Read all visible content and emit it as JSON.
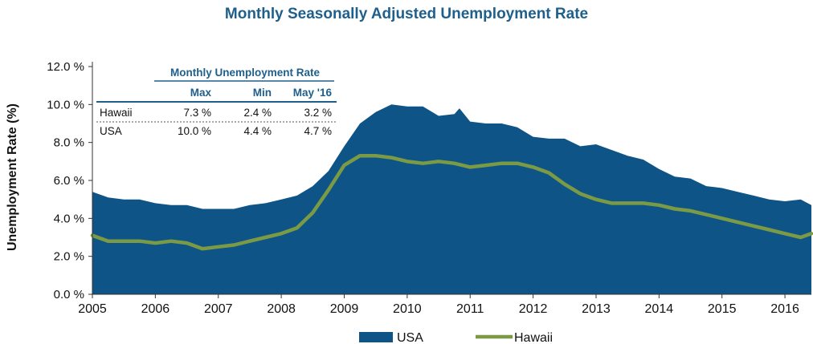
{
  "chart_data": {
    "type": "area",
    "title": "Monthly Seasonally Adjusted Unemployment Rate",
    "xlabel": "",
    "ylabel": "Unemployment Rate (%)",
    "x_ticks": [
      "2005",
      "2006",
      "2007",
      "2008",
      "2009",
      "2010",
      "2011",
      "2012",
      "2013",
      "2014",
      "2015",
      "2016"
    ],
    "y_ticks": [
      "0.0 %",
      "2.0 %",
      "4.0 %",
      "6.0 %",
      "8.0 %",
      "10.0 %",
      "12.0 %"
    ],
    "ylim": [
      0,
      12
    ],
    "xlim": [
      2005.0,
      2016.42
    ],
    "grid": false,
    "legend_position": "bottom",
    "series": [
      {
        "name": "USA",
        "style": "filled-area",
        "color": "#0e5486",
        "points": [
          [
            2005.0,
            5.4
          ],
          [
            2005.25,
            5.1
          ],
          [
            2005.5,
            5.0
          ],
          [
            2005.75,
            5.0
          ],
          [
            2006.0,
            4.8
          ],
          [
            2006.25,
            4.7
          ],
          [
            2006.5,
            4.7
          ],
          [
            2006.75,
            4.5
          ],
          [
            2007.0,
            4.5
          ],
          [
            2007.25,
            4.5
          ],
          [
            2007.5,
            4.7
          ],
          [
            2007.75,
            4.8
          ],
          [
            2008.0,
            5.0
          ],
          [
            2008.25,
            5.2
          ],
          [
            2008.5,
            5.7
          ],
          [
            2008.75,
            6.5
          ],
          [
            2009.0,
            7.8
          ],
          [
            2009.25,
            9.0
          ],
          [
            2009.5,
            9.6
          ],
          [
            2009.75,
            10.0
          ],
          [
            2010.0,
            9.9
          ],
          [
            2010.25,
            9.9
          ],
          [
            2010.5,
            9.4
          ],
          [
            2010.75,
            9.5
          ],
          [
            2010.83,
            9.8
          ],
          [
            2011.0,
            9.1
          ],
          [
            2011.25,
            9.0
          ],
          [
            2011.5,
            9.0
          ],
          [
            2011.75,
            8.8
          ],
          [
            2012.0,
            8.3
          ],
          [
            2012.25,
            8.2
          ],
          [
            2012.5,
            8.2
          ],
          [
            2012.75,
            7.8
          ],
          [
            2013.0,
            7.9
          ],
          [
            2013.25,
            7.6
          ],
          [
            2013.5,
            7.3
          ],
          [
            2013.75,
            7.1
          ],
          [
            2014.0,
            6.6
          ],
          [
            2014.25,
            6.2
          ],
          [
            2014.5,
            6.1
          ],
          [
            2014.75,
            5.7
          ],
          [
            2015.0,
            5.6
          ],
          [
            2015.25,
            5.4
          ],
          [
            2015.5,
            5.2
          ],
          [
            2015.75,
            5.0
          ],
          [
            2016.0,
            4.9
          ],
          [
            2016.25,
            5.0
          ],
          [
            2016.42,
            4.7
          ]
        ]
      },
      {
        "name": "Hawaii",
        "style": "line",
        "color": "#7a9a45",
        "points": [
          [
            2005.0,
            3.1
          ],
          [
            2005.25,
            2.8
          ],
          [
            2005.5,
            2.8
          ],
          [
            2005.75,
            2.8
          ],
          [
            2006.0,
            2.7
          ],
          [
            2006.25,
            2.8
          ],
          [
            2006.5,
            2.7
          ],
          [
            2006.75,
            2.4
          ],
          [
            2007.0,
            2.5
          ],
          [
            2007.25,
            2.6
          ],
          [
            2007.5,
            2.8
          ],
          [
            2007.75,
            3.0
          ],
          [
            2008.0,
            3.2
          ],
          [
            2008.25,
            3.5
          ],
          [
            2008.5,
            4.3
          ],
          [
            2008.75,
            5.5
          ],
          [
            2009.0,
            6.8
          ],
          [
            2009.25,
            7.3
          ],
          [
            2009.5,
            7.3
          ],
          [
            2009.75,
            7.2
          ],
          [
            2010.0,
            7.0
          ],
          [
            2010.25,
            6.9
          ],
          [
            2010.5,
            7.0
          ],
          [
            2010.75,
            6.9
          ],
          [
            2011.0,
            6.7
          ],
          [
            2011.25,
            6.8
          ],
          [
            2011.5,
            6.9
          ],
          [
            2011.75,
            6.9
          ],
          [
            2012.0,
            6.7
          ],
          [
            2012.25,
            6.4
          ],
          [
            2012.5,
            5.8
          ],
          [
            2012.75,
            5.3
          ],
          [
            2013.0,
            5.0
          ],
          [
            2013.25,
            4.8
          ],
          [
            2013.5,
            4.8
          ],
          [
            2013.75,
            4.8
          ],
          [
            2014.0,
            4.7
          ],
          [
            2014.25,
            4.5
          ],
          [
            2014.5,
            4.4
          ],
          [
            2014.75,
            4.2
          ],
          [
            2015.0,
            4.0
          ],
          [
            2015.25,
            3.8
          ],
          [
            2015.5,
            3.6
          ],
          [
            2015.75,
            3.4
          ],
          [
            2016.0,
            3.2
          ],
          [
            2016.25,
            3.0
          ],
          [
            2016.42,
            3.2
          ]
        ]
      }
    ],
    "inset_table": {
      "group_header": "Monthly Unemployment Rate",
      "columns": [
        "Max",
        "Min",
        "May '16"
      ],
      "rows": [
        {
          "label": "Hawaii",
          "values": [
            "7.3 %",
            "2.4 %",
            "3.2 %"
          ]
        },
        {
          "label": "USA",
          "values": [
            "10.0 %",
            "4.4 %",
            "4.7 %"
          ]
        }
      ]
    }
  }
}
